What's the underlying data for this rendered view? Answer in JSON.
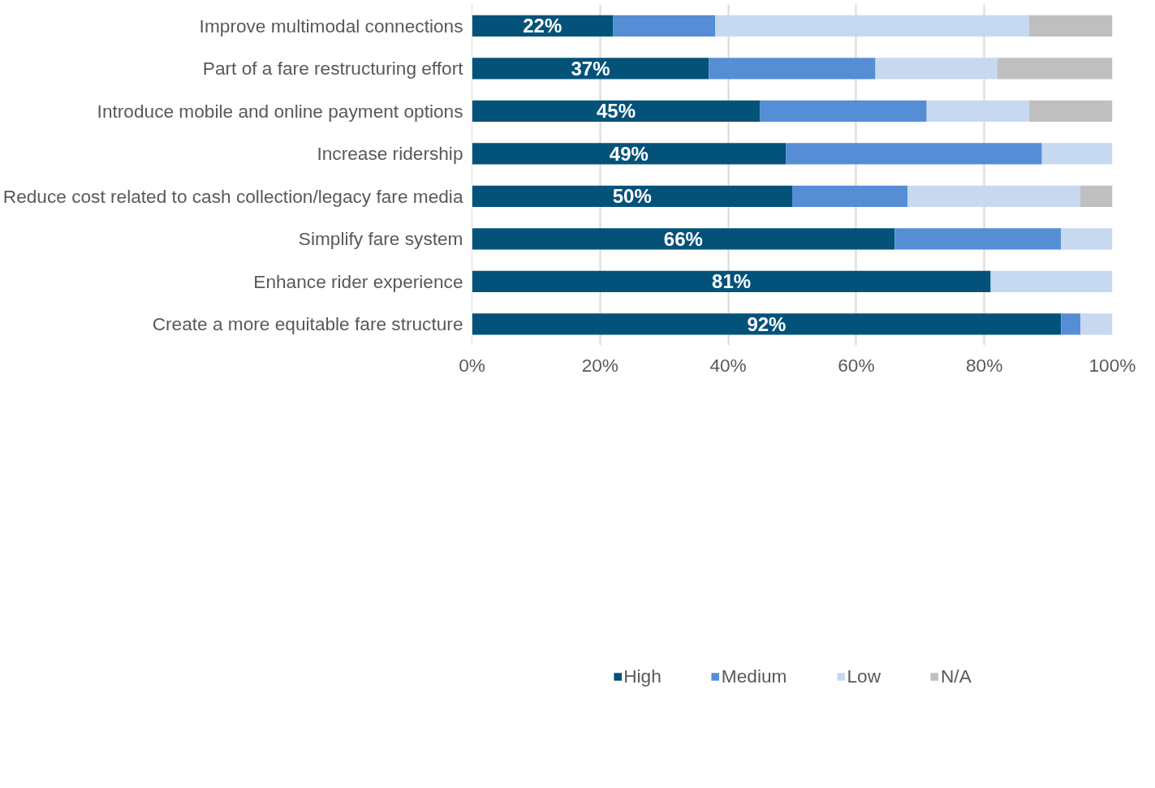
{
  "chart_data": {
    "type": "bar",
    "orientation": "horizontal",
    "stacked": true,
    "categories": [
      "Improve multimodal connections",
      "Part of a fare restructuring effort",
      "Introduce mobile and online payment options",
      "Increase ridership",
      "Reduce cost related to cash collection/legacy fare media",
      "Simplify fare system",
      "Enhance rider experience",
      "Create a more equitable fare structure"
    ],
    "series": [
      {
        "name": "High",
        "color": "#03527a",
        "values": [
          22,
          37,
          45,
          49,
          50,
          66,
          81,
          92
        ],
        "value_labels": [
          "22%",
          "37%",
          "45%",
          "49%",
          "50%",
          "66%",
          "81%",
          "92%"
        ]
      },
      {
        "name": "Medium",
        "color": "#558ed5",
        "values": [
          16,
          26,
          26,
          40,
          18,
          26,
          0,
          3
        ]
      },
      {
        "name": "Low",
        "color": "#c6d9f1",
        "values": [
          49,
          19,
          16,
          11,
          27,
          8,
          19,
          5
        ]
      },
      {
        "name": "N/A",
        "color": "#bfbfbf",
        "values": [
          13,
          18,
          13,
          0,
          5,
          0,
          0,
          0
        ]
      }
    ],
    "xlim": [
      0,
      100
    ],
    "xticks": [
      {
        "value": 0,
        "label": "0%"
      },
      {
        "value": 20,
        "label": "20%"
      },
      {
        "value": 40,
        "label": "40%"
      },
      {
        "value": 60,
        "label": "60%"
      },
      {
        "value": 80,
        "label": "80%"
      },
      {
        "value": 100,
        "label": "100%"
      }
    ],
    "grid": "x",
    "legend": "bottom"
  }
}
